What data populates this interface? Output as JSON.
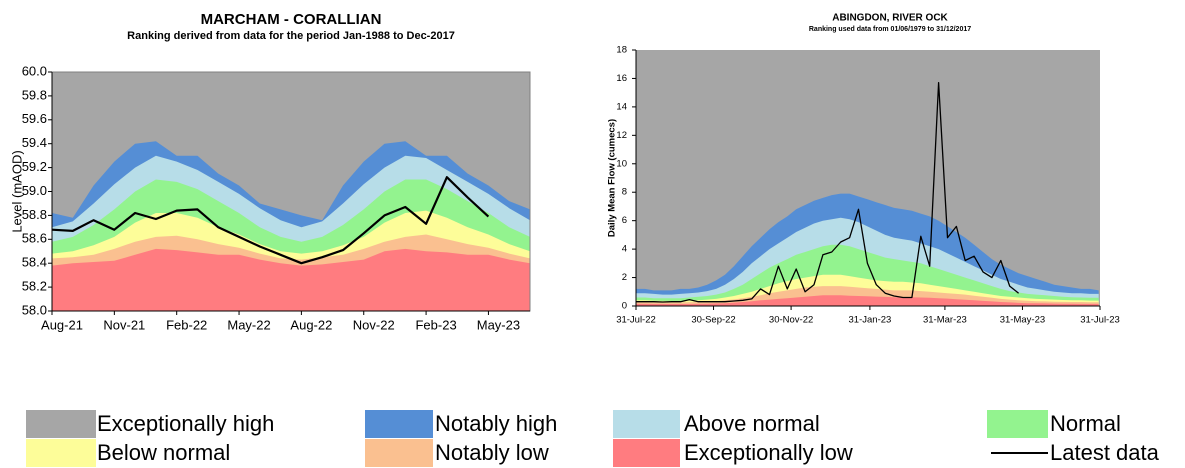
{
  "chart_data": [
    {
      "type": "area",
      "title": "MARCHAM - CORALLIAN",
      "subtitle": "Ranking derived from data for the period Jan-1988 to Dec-2017",
      "y_label": "Level (mAOD)",
      "categories": [
        "Aug-21",
        null,
        null,
        "Nov-21",
        null,
        null,
        "Feb-22",
        null,
        null,
        "May-22",
        null,
        null,
        "Aug-22",
        null,
        null,
        "Nov-22",
        null,
        null,
        "Feb-23",
        null,
        null,
        "May-23",
        null,
        null
      ],
      "ylim": [
        58,
        60
      ],
      "yticks": [
        {
          "value": 58,
          "label": "58.0"
        },
        58.2,
        58.4,
        58.6,
        58.8,
        {
          "value": 59,
          "label": "59.0"
        },
        59.2,
        59.4,
        59.6,
        59.8,
        {
          "value": 60,
          "label": "60.0"
        }
      ],
      "background": "#a6a6a6",
      "series": [
        {
          "name": "Exceptionally low",
          "style": "area",
          "color": "#ff7c80",
          "values": [
            58.38,
            58.4,
            58.41,
            58.42,
            58.47,
            58.52,
            58.51,
            58.49,
            58.47,
            58.47,
            58.43,
            58.4,
            58.38,
            58.39,
            58.41,
            58.43,
            58.5,
            58.52,
            58.5,
            58.49,
            58.47,
            58.47,
            58.43,
            58.4
          ]
        },
        {
          "name": "Notably low",
          "style": "area",
          "color": "#fac090",
          "values": [
            58.44,
            58.45,
            58.47,
            58.52,
            58.58,
            58.62,
            58.63,
            58.6,
            58.56,
            58.53,
            58.48,
            58.44,
            58.43,
            58.45,
            58.47,
            58.52,
            58.58,
            58.62,
            58.64,
            58.6,
            58.56,
            58.53,
            58.48,
            58.44
          ]
        },
        {
          "name": "Below normal",
          "style": "area",
          "color": "#fdfd99",
          "values": [
            58.48,
            58.5,
            58.55,
            58.62,
            58.74,
            58.82,
            58.82,
            58.78,
            58.7,
            58.64,
            58.56,
            58.5,
            58.48,
            58.5,
            58.55,
            58.62,
            58.74,
            58.82,
            58.84,
            58.78,
            58.7,
            58.64,
            58.56,
            58.5
          ]
        },
        {
          "name": "Normal",
          "style": "area",
          "color": "#93f38f",
          "values": [
            58.58,
            58.62,
            58.72,
            58.85,
            59.0,
            59.1,
            59.08,
            59.02,
            58.92,
            58.82,
            58.7,
            58.62,
            58.58,
            58.62,
            58.72,
            58.85,
            59.0,
            59.1,
            59.1,
            59.02,
            58.92,
            58.82,
            58.7,
            58.62
          ]
        },
        {
          "name": "Above normal",
          "style": "area",
          "color": "#b7dde8",
          "values": [
            58.7,
            58.75,
            58.9,
            59.06,
            59.2,
            59.3,
            59.25,
            59.18,
            59.08,
            58.98,
            58.86,
            58.76,
            58.7,
            58.75,
            58.9,
            59.06,
            59.2,
            59.3,
            59.28,
            59.18,
            59.08,
            58.98,
            58.86,
            58.76
          ]
        },
        {
          "name": "Notably high",
          "style": "area",
          "color": "#558ed5",
          "values": [
            58.82,
            58.78,
            59.05,
            59.25,
            59.4,
            59.42,
            59.3,
            59.3,
            59.15,
            59.05,
            58.9,
            58.85,
            58.8,
            58.76,
            59.05,
            59.25,
            59.4,
            59.42,
            59.3,
            59.3,
            59.15,
            59.05,
            58.92,
            58.85
          ]
        },
        {
          "name": "Latest data",
          "style": "line",
          "color": "#000000",
          "values": [
            58.68,
            58.67,
            58.76,
            58.68,
            58.82,
            58.77,
            58.84,
            58.85,
            58.7,
            58.62,
            58.54,
            58.47,
            58.4,
            58.45,
            58.51,
            58.65,
            58.8,
            58.87,
            58.73,
            59.12,
            58.95,
            58.79,
            null,
            null
          ]
        }
      ]
    },
    {
      "type": "area",
      "title": "ABINGDON, RIVER OCK",
      "subtitle": "Ranking used data from 01/06/1979 to 31/12/2017",
      "y_label": "Daily Mean Flow (cumecs)",
      "x": [
        "2022-07-31",
        "2022-08-07",
        "2022-08-14",
        "2022-08-21",
        "2022-08-28",
        "2022-09-04",
        "2022-09-11",
        "2022-09-18",
        "2022-09-25",
        "2022-10-02",
        "2022-10-09",
        "2022-10-16",
        "2022-10-23",
        "2022-10-30",
        "2022-11-06",
        "2022-11-13",
        "2022-11-20",
        "2022-11-27",
        "2022-12-04",
        "2022-12-11",
        "2022-12-18",
        "2022-12-25",
        "2023-01-01",
        "2023-01-08",
        "2023-01-15",
        "2023-01-22",
        "2023-01-29",
        "2023-02-05",
        "2023-02-12",
        "2023-02-19",
        "2023-02-26",
        "2023-03-05",
        "2023-03-12",
        "2023-03-19",
        "2023-03-26",
        "2023-04-02",
        "2023-04-09",
        "2023-04-16",
        "2023-04-23",
        "2023-04-30",
        "2023-05-07",
        "2023-05-14",
        "2023-05-21",
        "2023-05-28",
        "2023-06-04",
        "2023-06-11",
        "2023-06-18",
        "2023-06-25",
        "2023-07-02",
        "2023-07-09",
        "2023-07-16",
        "2023-07-23",
        "2023-07-30"
      ],
      "xlim": [
        "2022-07-31",
        "2023-07-31"
      ],
      "xticks": [
        {
          "value": "2022-07-31",
          "label": "31-Jul-22"
        },
        {
          "value": "2022-09-30",
          "label": "30-Sep-22"
        },
        {
          "value": "2022-11-30",
          "label": "30-Nov-22"
        },
        {
          "value": "2023-01-31",
          "label": "31-Jan-23"
        },
        {
          "value": "2023-03-31",
          "label": "31-Mar-23"
        },
        {
          "value": "2023-05-31",
          "label": "31-May-23"
        },
        {
          "value": "2023-07-31",
          "label": "31-Jul-23"
        }
      ],
      "ylim": [
        0,
        18
      ],
      "yticks": [
        0,
        2,
        4,
        6,
        8,
        10,
        12,
        14,
        16,
        18
      ],
      "background": "#a6a6a6",
      "series": [
        {
          "name": "Exceptionally low",
          "style": "area",
          "color": "#ff7c80",
          "values": [
            0.15,
            0.15,
            0.14,
            0.14,
            0.14,
            0.14,
            0.14,
            0.15,
            0.16,
            0.18,
            0.2,
            0.24,
            0.28,
            0.33,
            0.4,
            0.45,
            0.5,
            0.55,
            0.6,
            0.65,
            0.7,
            0.75,
            0.75,
            0.75,
            0.72,
            0.7,
            0.68,
            0.66,
            0.64,
            0.62,
            0.62,
            0.62,
            0.6,
            0.58,
            0.55,
            0.52,
            0.48,
            0.44,
            0.4,
            0.36,
            0.32,
            0.28,
            0.25,
            0.22,
            0.2,
            0.19,
            0.18,
            0.17,
            0.16,
            0.16,
            0.15,
            0.15,
            0.15
          ]
        },
        {
          "name": "Notably low",
          "style": "area",
          "color": "#fac090",
          "values": [
            0.28,
            0.28,
            0.27,
            0.26,
            0.26,
            0.26,
            0.27,
            0.28,
            0.3,
            0.34,
            0.4,
            0.46,
            0.55,
            0.65,
            0.75,
            0.9,
            1.0,
            1.1,
            1.2,
            1.3,
            1.35,
            1.4,
            1.4,
            1.4,
            1.35,
            1.3,
            1.25,
            1.2,
            1.15,
            1.1,
            1.1,
            1.1,
            1.05,
            1.0,
            0.95,
            0.9,
            0.85,
            0.8,
            0.72,
            0.65,
            0.58,
            0.5,
            0.45,
            0.4,
            0.37,
            0.34,
            0.32,
            0.3,
            0.29,
            0.28,
            0.28,
            0.27,
            0.27
          ]
        },
        {
          "name": "Below normal",
          "style": "area",
          "color": "#fdfd99",
          "values": [
            0.4,
            0.4,
            0.38,
            0.36,
            0.36,
            0.36,
            0.38,
            0.4,
            0.45,
            0.5,
            0.6,
            0.7,
            0.85,
            1.0,
            1.2,
            1.4,
            1.6,
            1.75,
            1.9,
            2.0,
            2.1,
            2.2,
            2.2,
            2.2,
            2.1,
            2.0,
            1.9,
            1.8,
            1.75,
            1.7,
            1.7,
            1.65,
            1.6,
            1.5,
            1.4,
            1.3,
            1.2,
            1.1,
            1.0,
            0.9,
            0.8,
            0.7,
            0.65,
            0.6,
            0.55,
            0.5,
            0.48,
            0.45,
            0.42,
            0.4,
            0.4,
            0.38,
            0.38
          ]
        },
        {
          "name": "Normal",
          "style": "area",
          "color": "#93f38f",
          "values": [
            0.6,
            0.6,
            0.55,
            0.55,
            0.55,
            0.55,
            0.6,
            0.65,
            0.7,
            0.8,
            0.95,
            1.2,
            1.5,
            1.9,
            2.3,
            2.7,
            3.0,
            3.3,
            3.6,
            3.8,
            4.0,
            4.2,
            4.3,
            4.3,
            4.2,
            4.0,
            3.8,
            3.6,
            3.4,
            3.3,
            3.2,
            3.1,
            3.0,
            2.8,
            2.6,
            2.4,
            2.2,
            2.0,
            1.8,
            1.6,
            1.4,
            1.2,
            1.05,
            0.95,
            0.85,
            0.8,
            0.75,
            0.7,
            0.65,
            0.62,
            0.6,
            0.58,
            0.58
          ]
        },
        {
          "name": "Above normal",
          "style": "area",
          "color": "#b7dde8",
          "values": [
            0.9,
            0.9,
            0.85,
            0.8,
            0.8,
            0.85,
            0.9,
            0.95,
            1.05,
            1.2,
            1.5,
            1.9,
            2.4,
            3.0,
            3.5,
            4.0,
            4.4,
            4.8,
            5.2,
            5.5,
            5.8,
            6.0,
            6.1,
            6.2,
            6.1,
            5.9,
            5.6,
            5.3,
            5.0,
            4.8,
            4.7,
            4.6,
            4.4,
            4.2,
            4.0,
            3.7,
            3.4,
            3.1,
            2.8,
            2.5,
            2.2,
            1.9,
            1.7,
            1.5,
            1.3,
            1.2,
            1.1,
            1.0,
            0.95,
            0.9,
            0.9,
            0.85,
            0.85
          ]
        },
        {
          "name": "Notably high",
          "style": "area",
          "color": "#558ed5",
          "values": [
            1.2,
            1.2,
            1.1,
            1.1,
            1.1,
            1.2,
            1.2,
            1.3,
            1.5,
            1.8,
            2.2,
            2.8,
            3.5,
            4.2,
            4.8,
            5.4,
            5.9,
            6.3,
            6.8,
            7.1,
            7.4,
            7.6,
            7.8,
            7.9,
            7.9,
            7.7,
            7.5,
            7.3,
            7.1,
            6.9,
            6.8,
            6.7,
            6.5,
            6.3,
            6.0,
            5.6,
            5.2,
            4.8,
            4.3,
            3.8,
            3.3,
            2.9,
            2.6,
            2.3,
            2.1,
            1.9,
            1.7,
            1.5,
            1.4,
            1.3,
            1.2,
            1.2,
            1.1
          ]
        },
        {
          "name": "Latest data",
          "style": "line",
          "color": "#000000",
          "values": [
            0.3,
            0.3,
            0.3,
            0.28,
            0.3,
            0.3,
            0.45,
            0.3,
            0.3,
            0.3,
            0.3,
            0.35,
            0.4,
            0.5,
            1.2,
            0.8,
            2.8,
            1.2,
            2.6,
            1.0,
            1.5,
            3.6,
            3.8,
            4.5,
            4.8,
            6.8,
            3.0,
            1.5,
            0.9,
            0.7,
            0.6,
            0.6,
            4.9,
            2.8,
            15.7,
            4.8,
            5.6,
            3.2,
            3.5,
            2.4,
            2.0,
            3.2,
            1.4,
            0.9,
            null,
            null,
            null,
            null,
            null,
            null,
            null,
            null,
            null
          ]
        }
      ]
    }
  ],
  "legend": [
    {
      "name": "Exceptionally high",
      "color": "#a6a6a6",
      "style": "area"
    },
    {
      "name": "Notably high",
      "color": "#558ed5",
      "style": "area"
    },
    {
      "name": "Above normal",
      "color": "#b7dde8",
      "style": "area"
    },
    {
      "name": "Normal",
      "color": "#93f38f",
      "style": "area"
    },
    {
      "name": "Below normal",
      "color": "#fdfd99",
      "style": "area"
    },
    {
      "name": "Notably low",
      "color": "#fac090",
      "style": "area"
    },
    {
      "name": "Exceptionally low",
      "color": "#ff7c80",
      "style": "area"
    },
    {
      "name": "Latest data",
      "color": "#000000",
      "style": "line"
    }
  ]
}
